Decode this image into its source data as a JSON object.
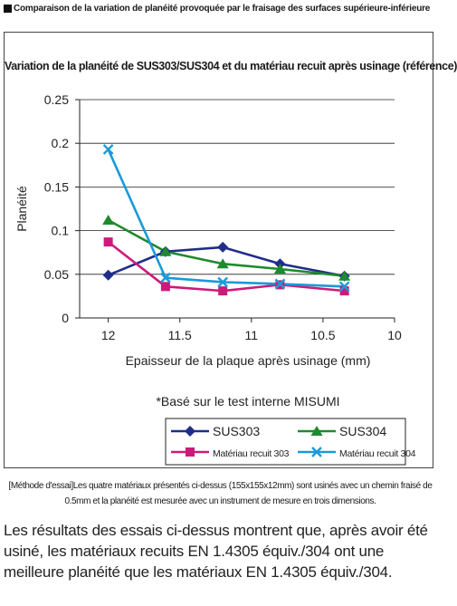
{
  "header": {
    "title": "Comparaison de la variation de planéité provoquée par le fraisage des surfaces supérieure-inférieure"
  },
  "chart_data": {
    "type": "line",
    "title": "Variation de la planéité de SUS303/SUS304 et du matériau recuit après usinage (référence)",
    "xlabel": "Epaisseur de la plaque après usinage (mm)",
    "ylabel": "Planéité",
    "x_ticks": [
      12,
      11.5,
      11,
      10.5,
      10
    ],
    "y_ticks": [
      0,
      0.05,
      0.1,
      0.15,
      0.2,
      0.25
    ],
    "y_tick_labels": [
      "0",
      "0.05",
      "0.1",
      "0.15",
      "0.2",
      "0.25"
    ],
    "xlim": [
      12.2,
      10
    ],
    "ylim": [
      0,
      0.25
    ],
    "x_reversed": true,
    "grid": "horizontal major lines",
    "note": "*Basé sur le test interne MISUMI",
    "legend_position": "bottom",
    "x": [
      12,
      11.6,
      11.2,
      10.8,
      10.35
    ],
    "series": [
      {
        "name": "SUS303",
        "color": "#1f2d8a",
        "marker": "diamond",
        "values": [
          0.049,
          0.076,
          0.081,
          0.062,
          0.048
        ]
      },
      {
        "name": "SUS304",
        "color": "#1e8a2e",
        "marker": "triangle",
        "values": [
          0.112,
          0.076,
          0.062,
          0.056,
          0.048
        ]
      },
      {
        "name": "Matériau recuit 303",
        "color": "#cc1a7a",
        "marker": "square",
        "values": [
          0.087,
          0.036,
          0.031,
          0.038,
          0.031
        ]
      },
      {
        "name": "Matériau recuit 304",
        "color": "#1a9ad8",
        "marker": "x",
        "values": [
          0.193,
          0.046,
          0.041,
          0.039,
          0.036
        ]
      }
    ]
  },
  "method": {
    "line1": "[Méthode d'essai]Les quatre matériaux présentés ci-dessus (155x155x12mm) sont usinés avec un chemin fraisé de",
    "line2": "0.5mm et la planéité est mesurée avec un instrument de mesure en trois dimensions."
  },
  "summary": "Les résultats des essais ci-dessus montrent que, après avoir été usiné, les matériaux recuits EN 1.4305 équiv./304 ont une meilleure planéité que les matériaux EN 1.4305 équiv./304."
}
